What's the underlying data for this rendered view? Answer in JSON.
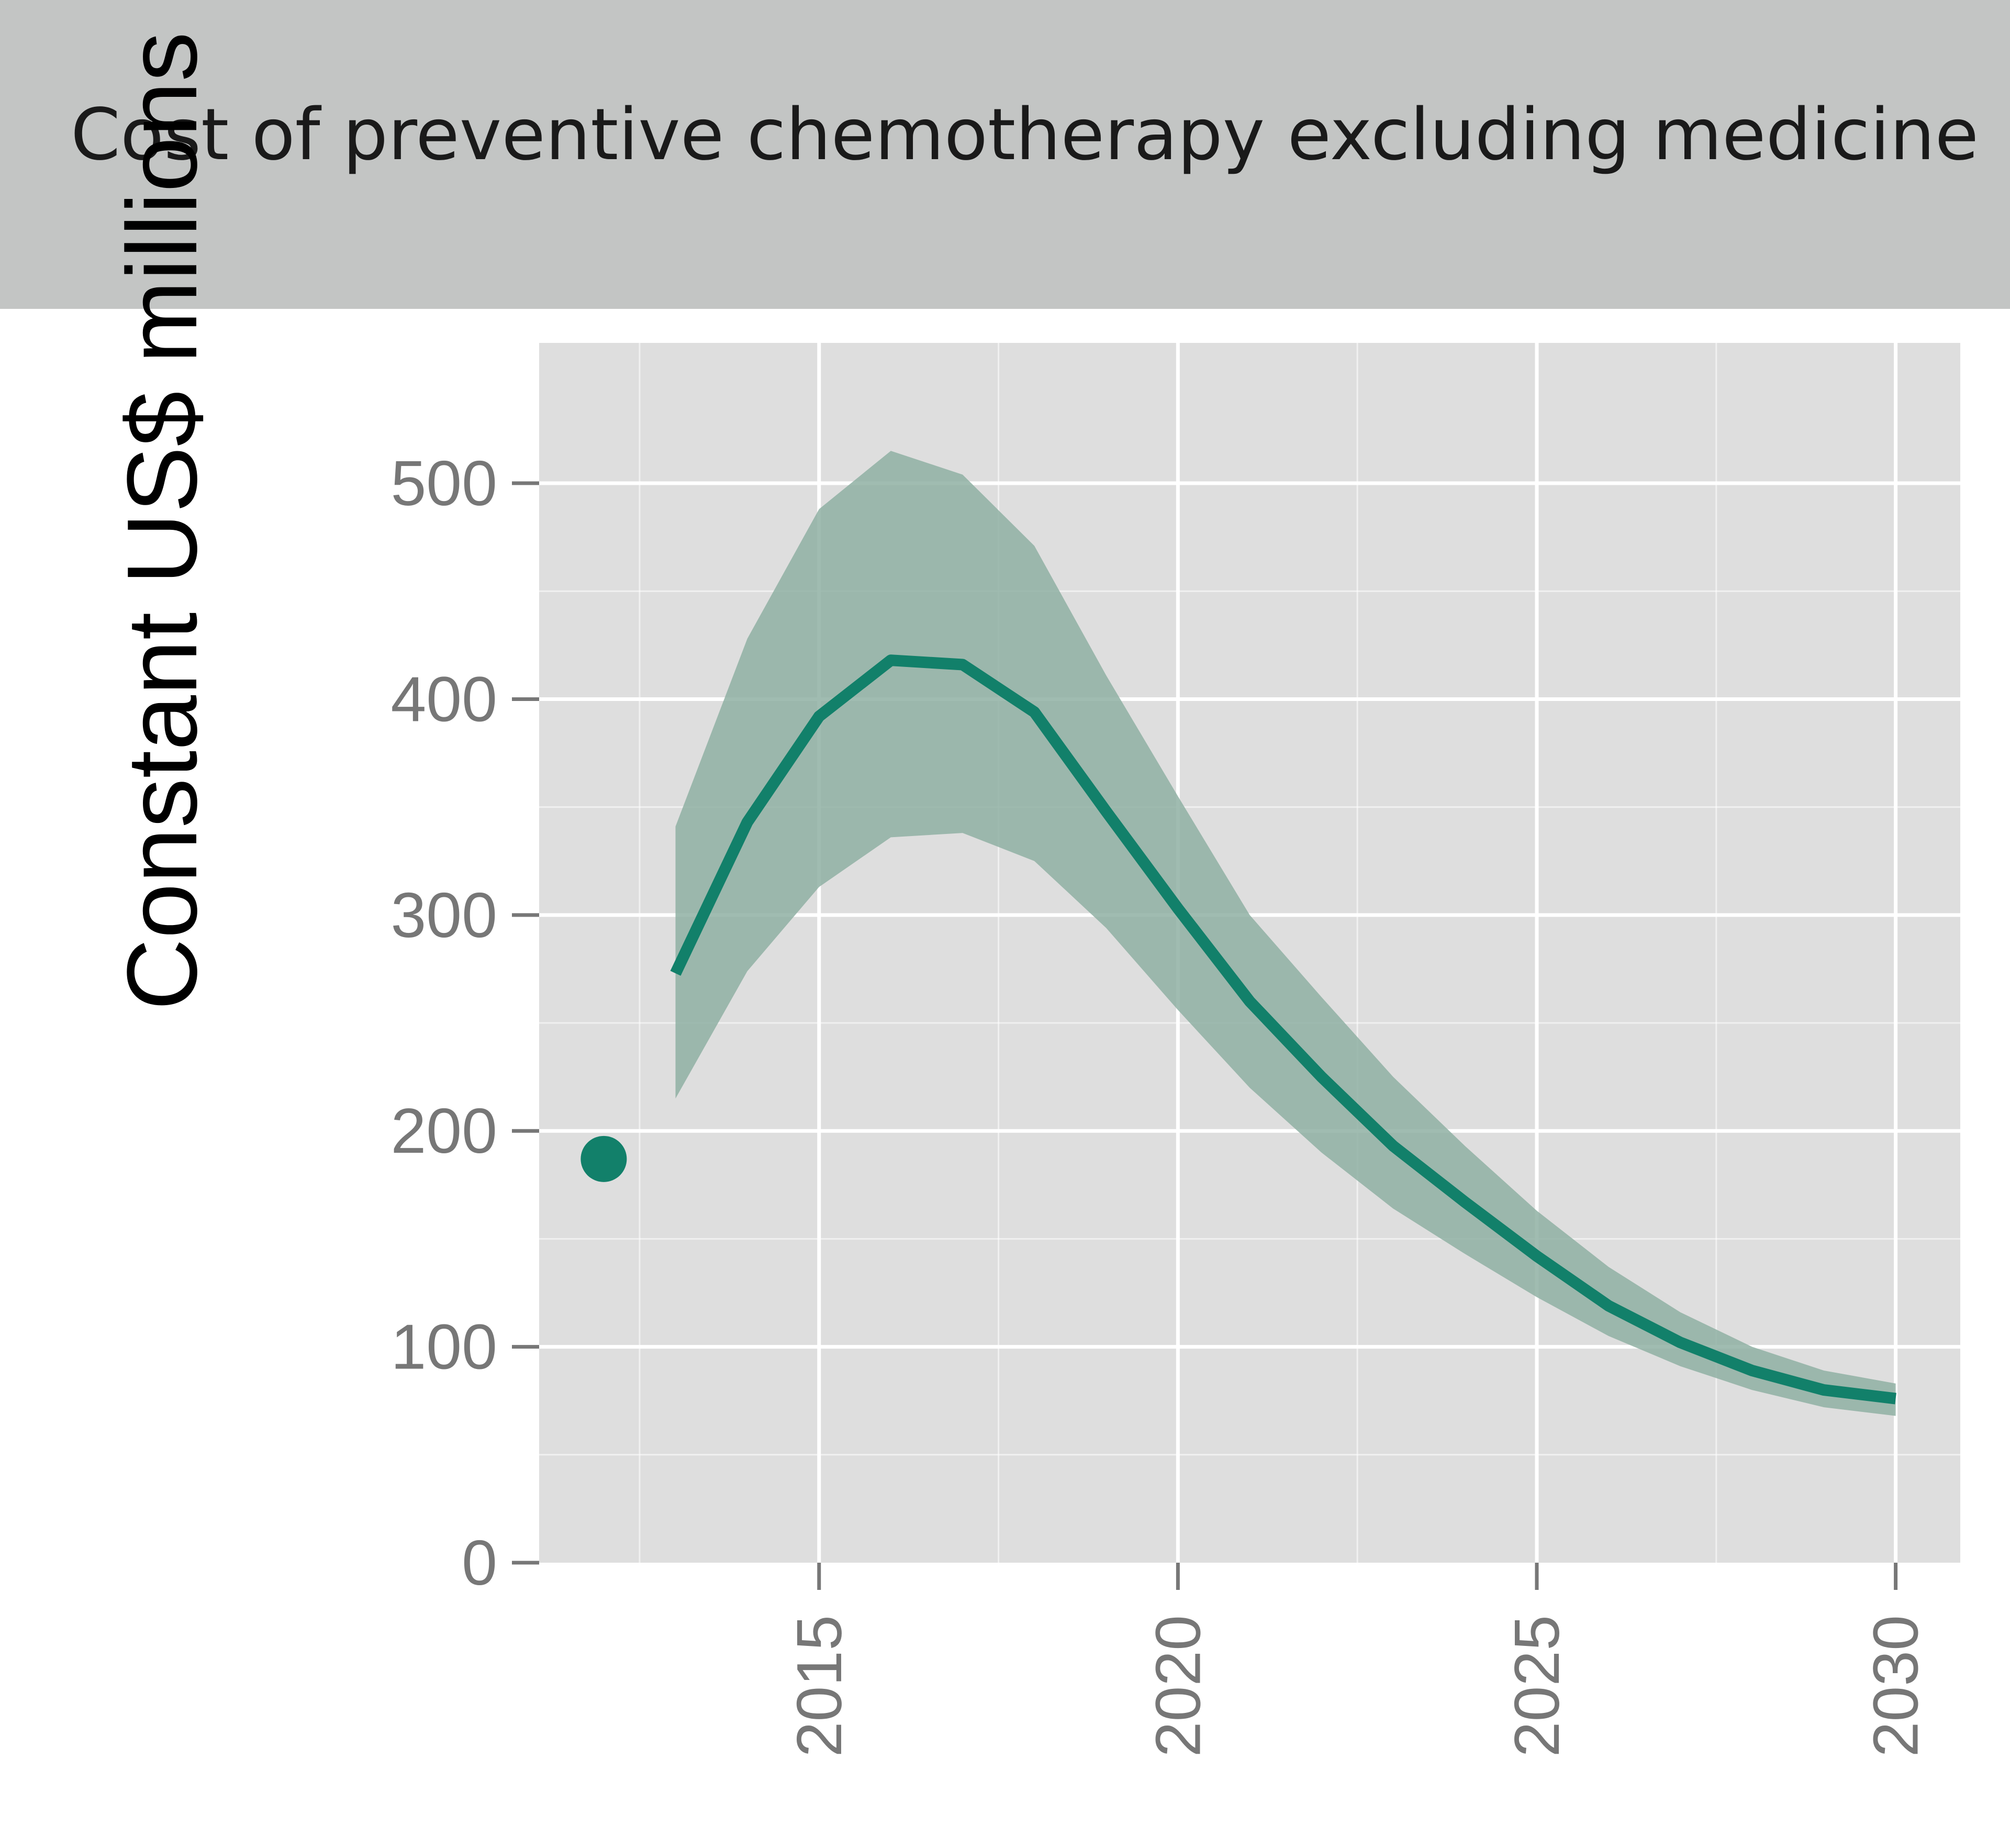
{
  "header": {
    "title": "Cost of preventive chemotherapy excluding medicine"
  },
  "colors": {
    "header_bg": "#c3c5c4",
    "panel_bg": "#dedede",
    "line": "#12806a",
    "band": "#8fb0a3",
    "grid": "#ffffff"
  },
  "chart_data": {
    "type": "line",
    "title": "Cost of preventive chemotherapy excluding medicine",
    "xlabel": "",
    "ylabel": "Constant US$ millions",
    "xlim": [
      2011.1,
      2030.9
    ],
    "ylim": [
      0,
      565
    ],
    "x_ticks": [
      2015,
      2020,
      2025,
      2030
    ],
    "x_tick_labels": [
      "2015",
      "2020",
      "2025",
      "2030"
    ],
    "y_ticks": [
      0,
      100,
      200,
      300,
      400,
      500
    ],
    "y_tick_labels": [
      "0",
      "100",
      "200",
      "300",
      "400",
      "500"
    ],
    "grid": true,
    "legend": "none",
    "point": {
      "x": 2012,
      "y": 187
    },
    "series": [
      {
        "x": [
          2013,
          2014,
          2015,
          2016,
          2017,
          2018,
          2019,
          2020,
          2021,
          2022,
          2023,
          2024,
          2025,
          2026,
          2027,
          2028,
          2029,
          2030
        ],
        "values": [
          273,
          343,
          392,
          418,
          416,
          394,
          348,
          303,
          260,
          225,
          193,
          167,
          142,
          119,
          102,
          89,
          80,
          76
        ],
        "lower": [
          215,
          274,
          313,
          336,
          338,
          325,
          294,
          256,
          220,
          190,
          164,
          143,
          123,
          105,
          91,
          80,
          72,
          68
        ],
        "upper": [
          341,
          428,
          488,
          515,
          504,
          471,
          411,
          355,
          300,
          262,
          225,
          193,
          163,
          137,
          116,
          100,
          89,
          83
        ]
      }
    ]
  }
}
